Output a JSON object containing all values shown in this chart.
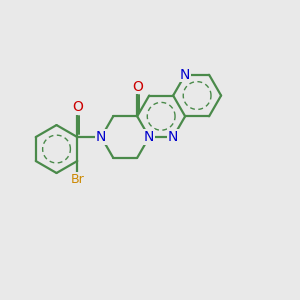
{
  "bg_color": "#e9e9e9",
  "bond_color": "#4a8a4a",
  "N_color": "#0000cc",
  "O_color": "#cc0000",
  "Br_color": "#cc8800",
  "lw": 1.6,
  "ilw": 1.0,
  "fs": 9.5,
  "figsize": [
    3.0,
    3.0
  ],
  "dpi": 100,
  "xlim": [
    -3.0,
    3.2
  ],
  "ylim": [
    -1.8,
    2.0
  ]
}
